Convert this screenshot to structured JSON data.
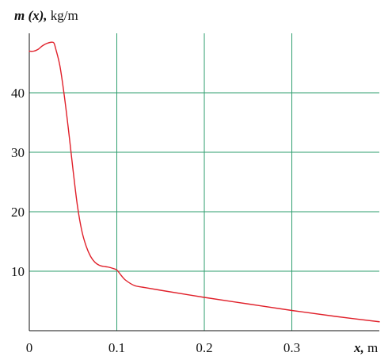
{
  "chart_data": {
    "type": "line",
    "title": "",
    "ylabel_var": "m (x),",
    "ylabel_unit": " kg/m",
    "xlabel_var": "x,",
    "xlabel_unit": " m",
    "origin_label": "0",
    "xlim": [
      0,
      0.4
    ],
    "ylim": [
      0,
      50
    ],
    "x_ticks": [
      {
        "value": 0.1,
        "label": "0.1"
      },
      {
        "value": 0.2,
        "label": "0.2"
      },
      {
        "value": 0.3,
        "label": "0.3"
      }
    ],
    "y_ticks": [
      {
        "value": 10,
        "label": "10"
      },
      {
        "value": 20,
        "label": "20"
      },
      {
        "value": 30,
        "label": "30"
      },
      {
        "value": 40,
        "label": "40"
      }
    ],
    "grid": true,
    "grid_color": "#2e9e6e",
    "series": [
      {
        "color": "#e0202a",
        "x": [
          0,
          0.005,
          0.01,
          0.015,
          0.02,
          0.025,
          0.028,
          0.03,
          0.035,
          0.04,
          0.045,
          0.05,
          0.055,
          0.06,
          0.065,
          0.07,
          0.075,
          0.08,
          0.085,
          0.09,
          0.095,
          0.1,
          0.105,
          0.11,
          0.12,
          0.13,
          0.15,
          0.2,
          0.25,
          0.3,
          0.35,
          0.4
        ],
        "y": [
          47,
          47,
          47.3,
          47.9,
          48.3,
          48.5,
          48.4,
          47.5,
          44.5,
          39.5,
          33.5,
          27,
          21,
          16.8,
          14.2,
          12.5,
          11.5,
          11,
          10.8,
          10.7,
          10.5,
          10.2,
          9.3,
          8.5,
          7.6,
          7.3,
          6.8,
          5.6,
          4.5,
          3.4,
          2.4,
          1.5
        ]
      }
    ]
  }
}
